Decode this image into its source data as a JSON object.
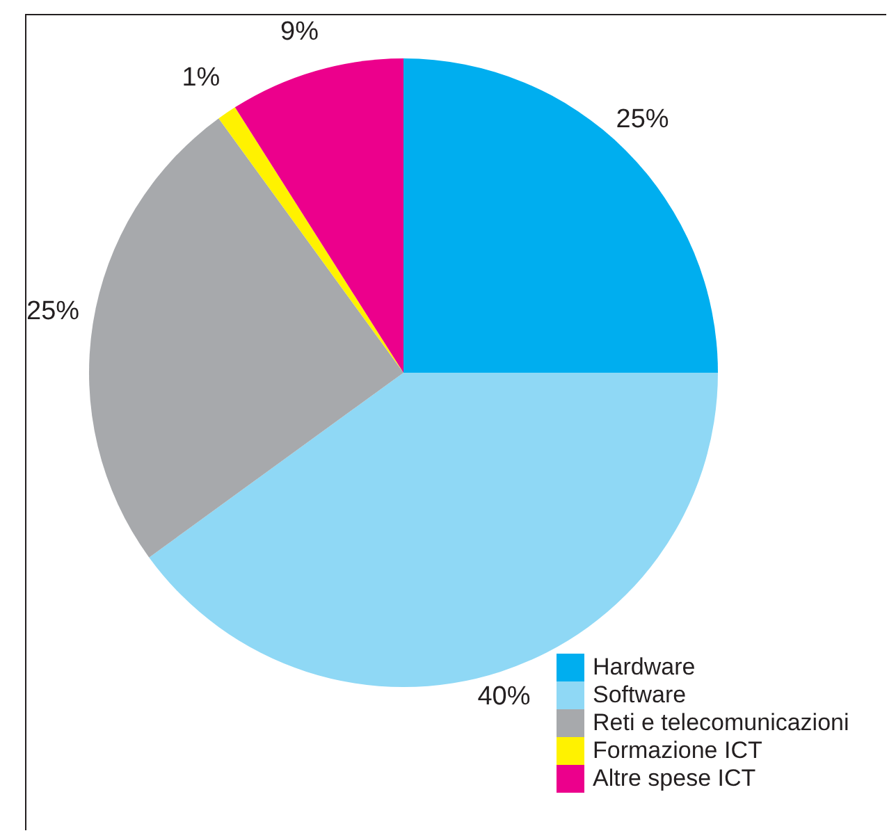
{
  "chart_data": {
    "type": "pie",
    "categories": [
      "Hardware",
      "Software",
      "Reti e telecomunicazioni",
      "Formazione ICT",
      "Altre spese ICT"
    ],
    "values": [
      25,
      40,
      25,
      1,
      9
    ],
    "colors": [
      "#00aeef",
      "#8fd8f5",
      "#a7a9ac",
      "#fff200",
      "#ec008c"
    ],
    "value_labels": [
      "25%",
      "40%",
      "25%",
      "1%",
      "9%"
    ],
    "legend": "bottom right"
  }
}
